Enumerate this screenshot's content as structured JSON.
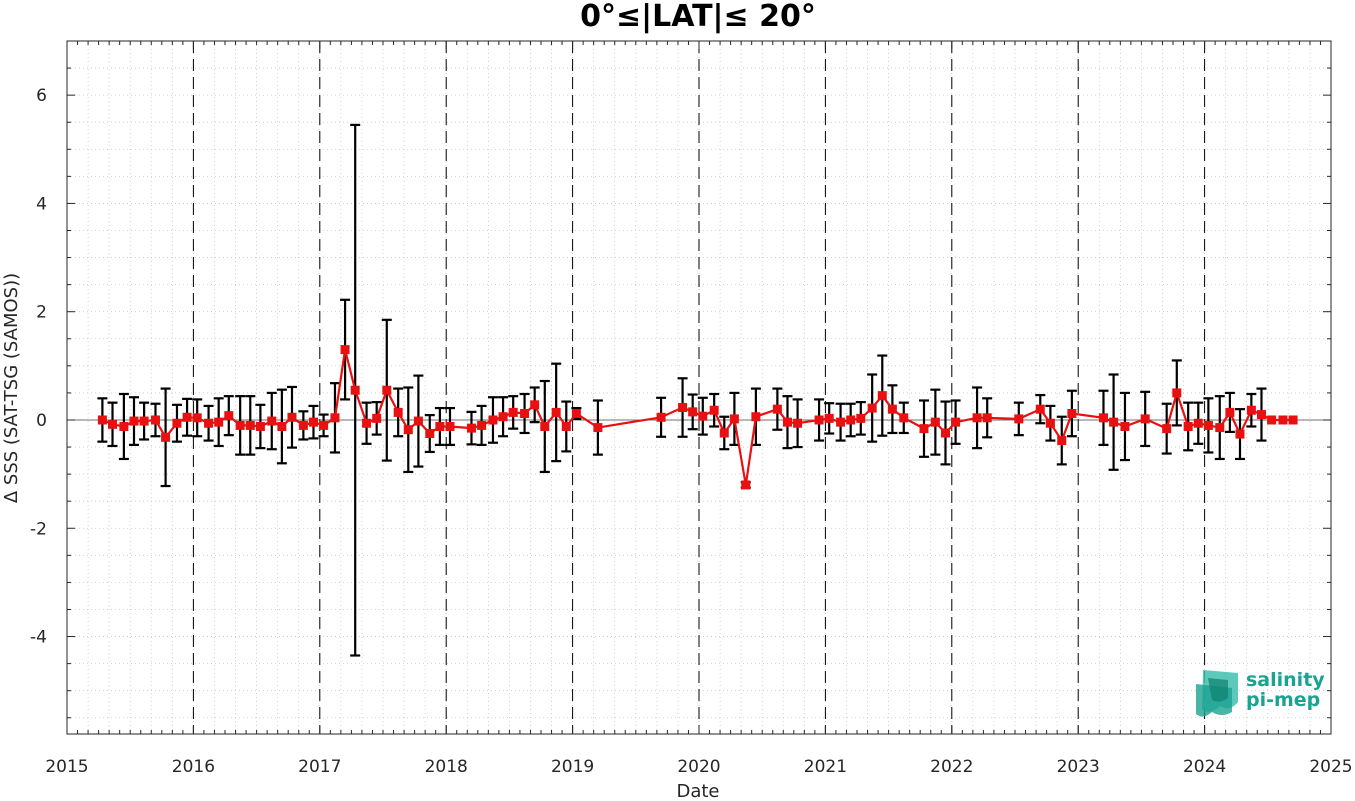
{
  "chart_data": {
    "type": "line",
    "title": "0°≤|LAT|≤ 20°",
    "xlabel": "Date",
    "ylabel": "Δ SSS (SAT-TSG (SAMOS))",
    "xlim": [
      2015,
      2025
    ],
    "ylim": [
      -5.8,
      7.0
    ],
    "x_ticks": [
      "2015",
      "2016",
      "2017",
      "2018",
      "2019",
      "2020",
      "2021",
      "2022",
      "2023",
      "2024",
      "2025"
    ],
    "y_ticks": [
      "-4",
      "-2",
      "0",
      "2",
      "4",
      "6"
    ],
    "x_tick_values": [
      2015,
      2016,
      2017,
      2018,
      2019,
      2020,
      2021,
      2022,
      2023,
      2024,
      2025
    ],
    "y_tick_values": [
      -4,
      -2,
      0,
      2,
      4,
      6
    ],
    "vertical_dashed_lines_at": [
      2016,
      2017,
      2018,
      2019,
      2020,
      2021,
      2022,
      2023,
      2024
    ],
    "grid": "minor dotted",
    "zero_line": true,
    "series": [
      {
        "color": "#e81010",
        "errorbar_color": "#000000",
        "marker": "square",
        "x": [
          2015.28,
          2015.36,
          2015.45,
          2015.53,
          2015.61,
          2015.7,
          2015.78,
          2015.87,
          2015.95,
          2016.03,
          2016.12,
          2016.2,
          2016.28,
          2016.37,
          2016.45,
          2016.53,
          2016.62,
          2016.7,
          2016.78,
          2016.87,
          2016.95,
          2017.03,
          2017.12,
          2017.2,
          2017.28,
          2017.37,
          2017.45,
          2017.53,
          2017.62,
          2017.7,
          2017.78,
          2017.87,
          2017.95,
          2018.03,
          2018.2,
          2018.28,
          2018.37,
          2018.45,
          2018.53,
          2018.62,
          2018.7,
          2018.78,
          2018.87,
          2018.95,
          2019.03,
          2019.2,
          2019.7,
          2019.87,
          2019.95,
          2020.03,
          2020.12,
          2020.2,
          2020.28,
          2020.37,
          2020.45,
          2020.62,
          2020.7,
          2020.78,
          2020.95,
          2021.03,
          2021.12,
          2021.2,
          2021.28,
          2021.37,
          2021.45,
          2021.53,
          2021.62,
          2021.78,
          2021.87,
          2021.95,
          2022.03,
          2022.2,
          2022.28,
          2022.53,
          2022.7,
          2022.78,
          2022.87,
          2022.95,
          2023.2,
          2023.28,
          2023.37,
          2023.53,
          2023.7,
          2023.78,
          2023.87,
          2023.95,
          2024.03,
          2024.12,
          2024.2,
          2024.28,
          2024.37,
          2024.45,
          2024.53,
          2024.62,
          2024.7
        ],
        "y": [
          0.0,
          -0.08,
          -0.12,
          -0.02,
          -0.02,
          0.0,
          -0.32,
          -0.06,
          0.05,
          0.04,
          -0.06,
          -0.04,
          0.08,
          -0.1,
          -0.1,
          -0.12,
          -0.02,
          -0.12,
          0.05,
          -0.1,
          -0.04,
          -0.1,
          0.04,
          1.3,
          0.55,
          -0.06,
          0.03,
          0.55,
          0.14,
          -0.18,
          -0.02,
          -0.25,
          -0.12,
          -0.12,
          -0.15,
          -0.1,
          0.0,
          0.06,
          0.14,
          0.12,
          0.28,
          -0.12,
          0.14,
          -0.12,
          0.12,
          -0.14,
          0.05,
          0.23,
          0.15,
          0.07,
          0.18,
          -0.24,
          0.02,
          -1.2,
          0.06,
          0.2,
          -0.04,
          -0.06,
          0.0,
          0.03,
          -0.04,
          0.0,
          0.03,
          0.22,
          0.45,
          0.2,
          0.04,
          -0.16,
          -0.04,
          -0.24,
          -0.04,
          0.04,
          0.04,
          0.02,
          0.2,
          -0.06,
          -0.38,
          0.12,
          0.04,
          -0.04,
          -0.12,
          0.02,
          -0.16,
          0.5,
          -0.12,
          -0.06,
          -0.1,
          -0.14,
          0.14,
          -0.26,
          0.18,
          0.1,
          0.0,
          0.0,
          0.0
        ],
        "err": [
          0.4,
          0.4,
          0.6,
          0.44,
          0.34,
          0.3,
          0.9,
          0.34,
          0.34,
          0.34,
          0.32,
          0.44,
          0.36,
          0.54,
          0.54,
          0.4,
          0.52,
          0.68,
          0.56,
          0.26,
          0.3,
          0.2,
          0.64,
          0.92,
          4.9,
          0.38,
          0.3,
          1.3,
          0.44,
          0.78,
          0.84,
          0.34,
          0.34,
          0.34,
          0.3,
          0.36,
          0.42,
          0.36,
          0.3,
          0.36,
          0.32,
          0.84,
          0.9,
          0.46,
          0.1,
          0.5,
          0.36,
          0.54,
          0.32,
          0.34,
          0.3,
          0.3,
          0.48,
          0.05,
          0.52,
          0.38,
          0.48,
          0.44,
          0.38,
          0.28,
          0.34,
          0.3,
          0.3,
          0.62,
          0.74,
          0.44,
          0.28,
          0.52,
          0.6,
          0.58,
          0.4,
          0.56,
          0.36,
          0.3,
          0.26,
          0.32,
          0.44,
          0.42,
          0.5,
          0.88,
          0.62,
          0.5,
          0.46,
          0.6,
          0.44,
          0.38,
          0.5,
          0.58,
          0.36,
          0.46,
          0.3,
          0.48,
          0.0,
          0.0,
          0.0
        ]
      }
    ]
  },
  "logo": {
    "line1": "salinity",
    "line2": "pi-mep",
    "color": "#1aa391"
  }
}
